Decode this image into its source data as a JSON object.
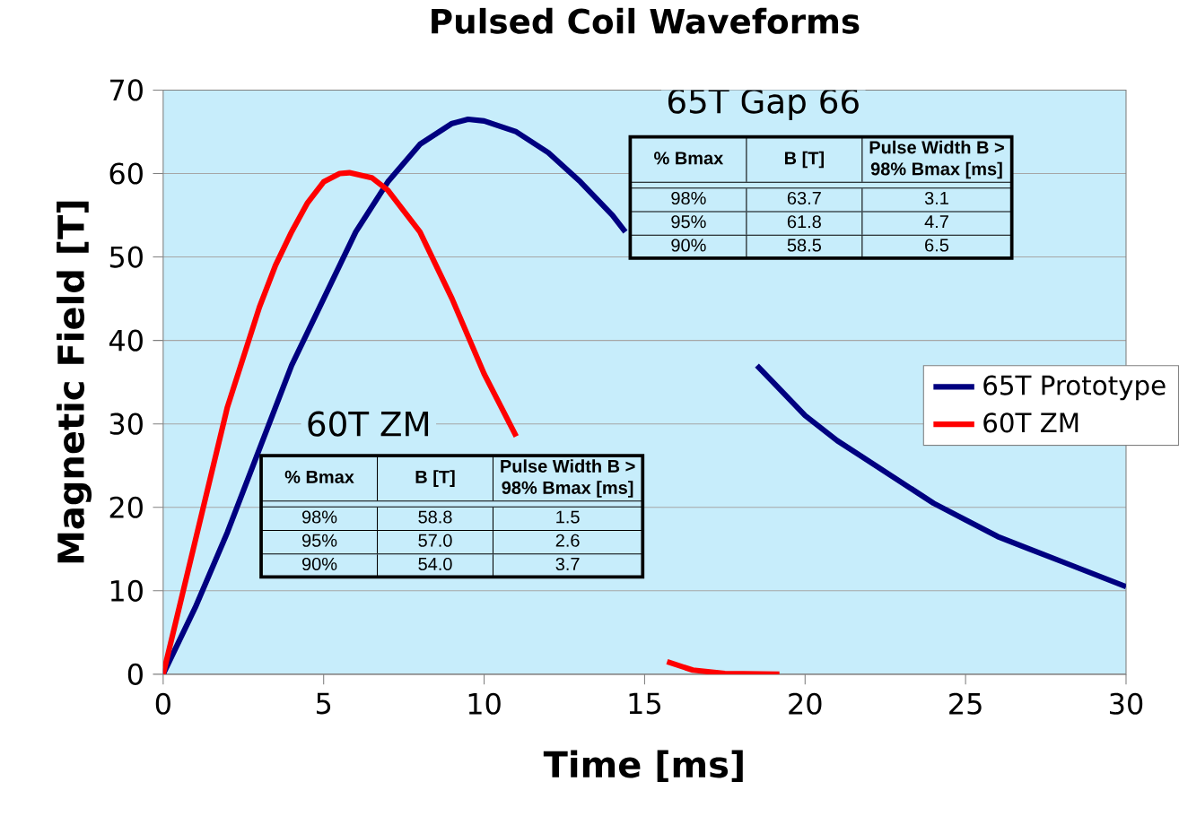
{
  "chart_data": {
    "type": "line",
    "title": "Pulsed Coil Waveforms",
    "xlabel": "Time [ms]",
    "ylabel": "Magnetic Field [T]",
    "xlim": [
      0,
      30
    ],
    "ylim": [
      0,
      70
    ],
    "xticks": [
      0,
      5,
      10,
      15,
      20,
      25,
      30
    ],
    "yticks": [
      0,
      10,
      20,
      30,
      40,
      50,
      60,
      70
    ],
    "grid": "y",
    "legend": "right",
    "series": [
      {
        "name": "65T Prototype",
        "color": "#000080",
        "x": [
          0,
          1,
          2,
          3,
          4,
          5,
          6,
          7,
          8,
          9,
          9.5,
          10,
          11,
          12,
          13,
          14,
          14.4,
          16,
          18.5,
          19,
          20,
          21,
          22,
          23,
          24,
          25,
          26,
          27,
          28,
          29,
          30
        ],
        "values": [
          0,
          8,
          17,
          27,
          37,
          45,
          53,
          59,
          63.5,
          66,
          66.5,
          66.3,
          65,
          62.5,
          59,
          55,
          53,
          null,
          37,
          35,
          31,
          28,
          25.5,
          23,
          20.5,
          18.5,
          16.5,
          15,
          13.5,
          12,
          10.5
        ]
      },
      {
        "name": "60T ZM",
        "color": "#ff0000",
        "x": [
          0,
          0.5,
          1,
          1.5,
          2,
          2.5,
          3,
          3.5,
          4,
          4.5,
          5,
          5.5,
          5.8,
          6.5,
          7,
          8,
          9,
          10,
          11,
          13,
          15.7,
          16.5,
          17.5,
          19.2
        ],
        "values": [
          0,
          8,
          16,
          24,
          32,
          38,
          44,
          49,
          53,
          56.5,
          59,
          60,
          60.1,
          59.5,
          58,
          53,
          45,
          36,
          28.5,
          null,
          1.5,
          0.5,
          0.1,
          0
        ]
      }
    ],
    "annotations": [
      "65T Gap 66",
      "% Bmax",
      "B [T]",
      "Pulse Width B > 98% Bmax [ms]",
      "98%",
      "63.7",
      "3.1",
      "95%",
      "61.8",
      "4.7",
      "90%",
      "58.5",
      "6.5",
      "60T ZM",
      "% Bmax",
      "B [T]",
      "Pulse Width B > 98% Bmax [ms]",
      "98%",
      "58.8",
      "1.5",
      "95%",
      "57.0",
      "2.6",
      "90%",
      "54.0",
      "3.7"
    ]
  }
}
